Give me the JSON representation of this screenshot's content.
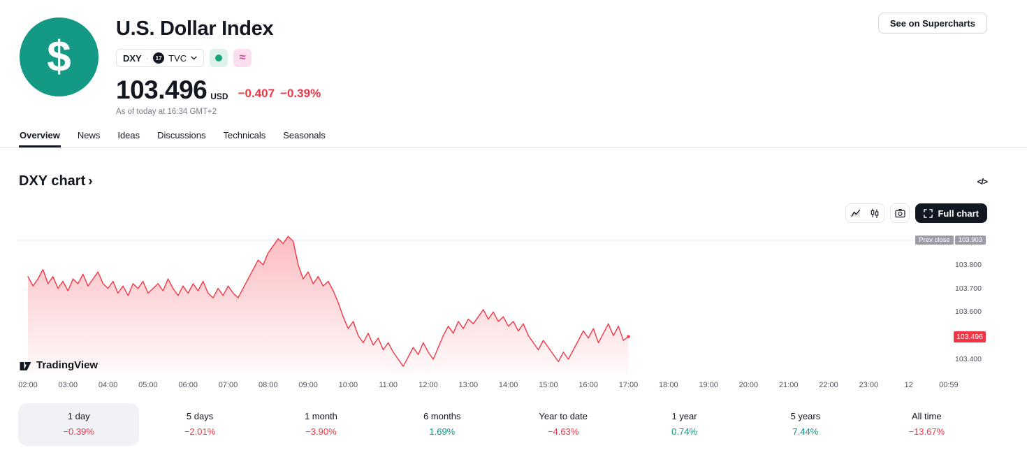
{
  "colors": {
    "accent_red": "#f23645",
    "accent_green": "#089981",
    "brand_teal": "#149a84",
    "chip_pink": "#e0439c",
    "text": "#131722",
    "muted": "#787b86"
  },
  "header": {
    "title": "U.S. Dollar Index",
    "logo_glyph": "$",
    "symbol": "DXY",
    "symbol_separator": "·",
    "exchange": "TVC",
    "tv_mini_glyph": "17",
    "similar_glyph": "≈",
    "price": "103.496",
    "currency": "USD",
    "change": "−0.407",
    "change_percent": "−0.39%",
    "as_of": "As of today at 16:34 GMT+2",
    "supercharts_button": "See on Supercharts"
  },
  "tabs": [
    {
      "label": "Overview",
      "active": true
    },
    {
      "label": "News",
      "active": false
    },
    {
      "label": "Ideas",
      "active": false
    },
    {
      "label": "Discussions",
      "active": false
    },
    {
      "label": "Technicals",
      "active": false
    },
    {
      "label": "Seasonals",
      "active": false
    }
  ],
  "chart_section": {
    "heading": "DXY chart",
    "heading_chevron": "›",
    "code_glyph": "</>",
    "full_chart_button": "Full chart",
    "watermark": "TradingView"
  },
  "chart_data": {
    "type": "area",
    "title": "DXY chart",
    "line_color": "#f23645",
    "x_start": 1.75,
    "dt": 0.125,
    "x_axis_ticks": [
      "02:00",
      "03:00",
      "04:00",
      "05:00",
      "06:00",
      "07:00",
      "08:00",
      "09:00",
      "10:00",
      "11:00",
      "12:00",
      "13:00",
      "14:00",
      "15:00",
      "16:00",
      "17:00",
      "18:00",
      "19:00",
      "20:00",
      "21:00",
      "22:00",
      "23:00",
      "12",
      "00:59"
    ],
    "y_ticks": [
      {
        "label": "103.800",
        "price": 103.8
      },
      {
        "label": "103.700",
        "price": 103.7
      },
      {
        "label": "103.600",
        "price": 103.6
      },
      {
        "label": "103.400",
        "price": 103.4
      }
    ],
    "prev_close_label": "Prev close",
    "prev_close": 103.903,
    "last_price": "103.496",
    "y_min": 103.33,
    "y_max": 103.95,
    "grid": false,
    "points": [
      103.75,
      103.71,
      103.74,
      103.78,
      103.72,
      103.75,
      103.7,
      103.73,
      103.69,
      103.74,
      103.72,
      103.76,
      103.71,
      103.74,
      103.77,
      103.72,
      103.7,
      103.73,
      103.68,
      103.71,
      103.67,
      103.72,
      103.7,
      103.73,
      103.68,
      103.7,
      103.72,
      103.69,
      103.74,
      103.7,
      103.67,
      103.71,
      103.68,
      103.72,
      103.69,
      103.73,
      103.68,
      103.66,
      103.7,
      103.67,
      103.71,
      103.68,
      103.66,
      103.7,
      103.74,
      103.78,
      103.82,
      103.8,
      103.85,
      103.88,
      103.91,
      103.89,
      103.92,
      103.9,
      103.8,
      103.74,
      103.77,
      103.72,
      103.75,
      103.71,
      103.73,
      103.69,
      103.64,
      103.58,
      103.53,
      103.56,
      103.5,
      103.47,
      103.51,
      103.46,
      103.49,
      103.44,
      103.47,
      103.43,
      103.4,
      103.37,
      103.41,
      103.45,
      103.42,
      103.47,
      103.43,
      103.4,
      103.45,
      103.5,
      103.54,
      103.51,
      103.56,
      103.53,
      103.57,
      103.55,
      103.58,
      103.61,
      103.57,
      103.6,
      103.56,
      103.58,
      103.54,
      103.56,
      103.52,
      103.55,
      103.5,
      103.47,
      103.44,
      103.48,
      103.45,
      103.42,
      103.39,
      103.43,
      103.4,
      103.44,
      103.48,
      103.52,
      103.49,
      103.53,
      103.47,
      103.51,
      103.55,
      103.5,
      103.54,
      103.48,
      103.496
    ]
  },
  "periods": [
    {
      "label": "1 day",
      "value": "−0.39%",
      "color": "#f23645",
      "active": true
    },
    {
      "label": "5 days",
      "value": "−2.01%",
      "color": "#f23645",
      "active": false
    },
    {
      "label": "1 month",
      "value": "−3.90%",
      "color": "#f23645",
      "active": false
    },
    {
      "label": "6 months",
      "value": "1.69%",
      "color": "#089981",
      "active": false
    },
    {
      "label": "Year to date",
      "value": "−4.63%",
      "color": "#f23645",
      "active": false
    },
    {
      "label": "1 year",
      "value": "0.74%",
      "color": "#089981",
      "active": false
    },
    {
      "label": "5 years",
      "value": "7.44%",
      "color": "#089981",
      "active": false
    },
    {
      "label": "All time",
      "value": "−13.67%",
      "color": "#f23645",
      "active": false
    }
  ]
}
